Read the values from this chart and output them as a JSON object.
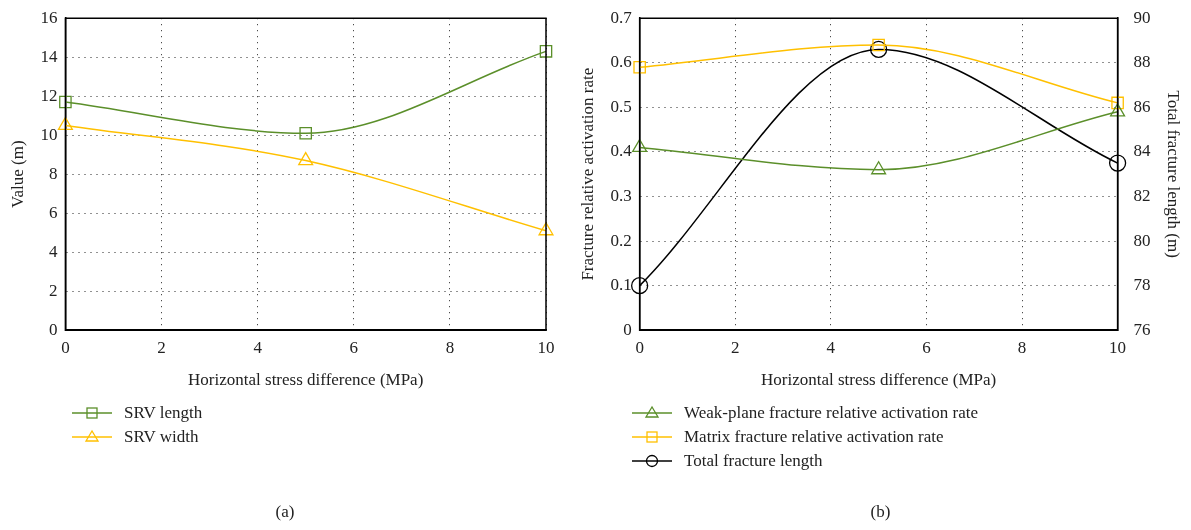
{
  "chart_data": [
    {
      "type": "line",
      "xlabel": "Horizontal stress difference (MPa)",
      "ylabel": "Value (m)",
      "x": [
        0,
        5,
        10
      ],
      "xlim": [
        0,
        10
      ],
      "xticks": [
        0,
        2,
        4,
        6,
        8,
        10
      ],
      "ylim": [
        0,
        16
      ],
      "yticks": [
        0,
        2,
        4,
        6,
        8,
        10,
        12,
        14,
        16
      ],
      "grid": true,
      "legend": "bottom",
      "annotations": [
        "(a)"
      ],
      "series": [
        {
          "name": "SRV length",
          "color": "#5b8f2a",
          "marker": "square",
          "values": [
            11.7,
            10.1,
            14.3
          ]
        },
        {
          "name": "SRV width",
          "color": "#ffc000",
          "marker": "triangle",
          "values": [
            10.5,
            8.7,
            5.1
          ]
        }
      ]
    },
    {
      "type": "line",
      "xlabel": "Horizontal stress difference (MPa)",
      "ylabel": "Fracture relative activation rate",
      "y2label": "Total fracture length (m)",
      "x": [
        0,
        5,
        10
      ],
      "xlim": [
        0,
        10
      ],
      "xticks": [
        0,
        2,
        4,
        6,
        8,
        10
      ],
      "ylim": [
        0,
        0.7
      ],
      "yticks": [
        0,
        0.1,
        0.2,
        0.3,
        0.4,
        0.5,
        0.6,
        0.7
      ],
      "y2lim": [
        76,
        90
      ],
      "y2ticks": [
        76,
        78,
        80,
        82,
        84,
        86,
        88,
        90
      ],
      "grid": true,
      "legend": "bottom",
      "annotations": [
        "(b)"
      ],
      "series": [
        {
          "name": "Weak-plane fracture relative activation rate",
          "color": "#5b8f2a",
          "marker": "triangle",
          "values": [
            0.41,
            0.36,
            0.49
          ]
        },
        {
          "name": "Matrix fracture relative activation rate",
          "color": "#ffc000",
          "marker": "square",
          "values": [
            0.59,
            0.64,
            0.51
          ]
        },
        {
          "name": "Total fracture length",
          "color": "#000000",
          "marker": "circle",
          "axis": "y2",
          "values": [
            78,
            88.6,
            83.5
          ]
        }
      ]
    }
  ]
}
